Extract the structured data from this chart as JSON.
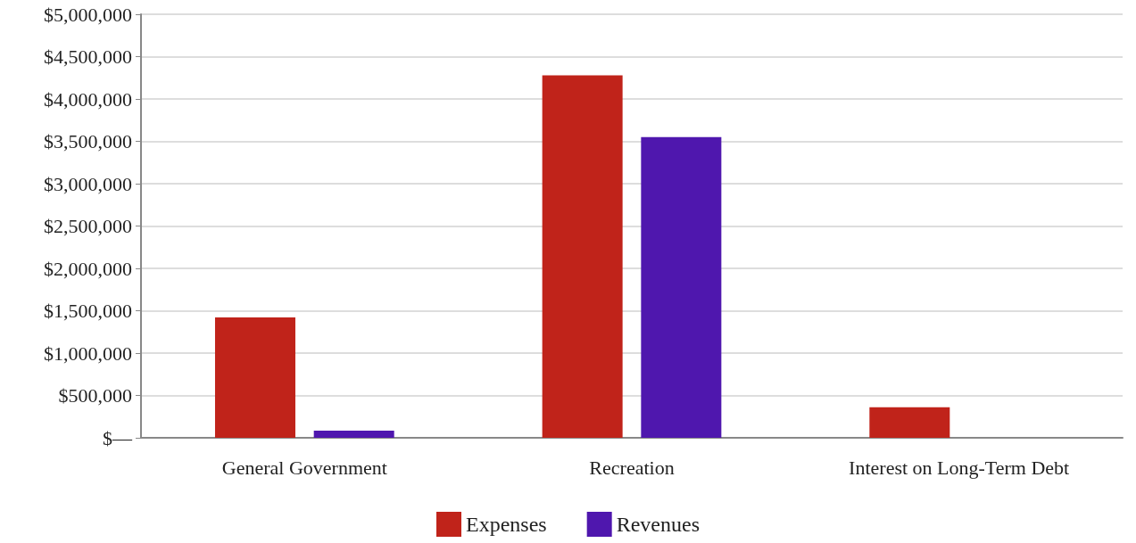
{
  "chart_data": {
    "type": "bar",
    "categories": [
      "General Government",
      "Recreation",
      "Interest on Long-Term Debt"
    ],
    "series": [
      {
        "name": "Expenses",
        "color": "#c0231a",
        "values": [
          1420000,
          4280000,
          360000
        ]
      },
      {
        "name": "Revenues",
        "color": "#4f17ae",
        "values": [
          85000,
          3550000,
          0
        ]
      }
    ],
    "ylim": [
      0,
      5000000
    ],
    "yticks": [
      {
        "value": 0,
        "label": "$—"
      },
      {
        "value": 500000,
        "label": "$500,000"
      },
      {
        "value": 1000000,
        "label": "$1,000,000"
      },
      {
        "value": 1500000,
        "label": "$1,500,000"
      },
      {
        "value": 2000000,
        "label": "$2,000,000"
      },
      {
        "value": 2500000,
        "label": "$2,500,000"
      },
      {
        "value": 3000000,
        "label": "$3,000,000"
      },
      {
        "value": 3500000,
        "label": "$3,500,000"
      },
      {
        "value": 4000000,
        "label": "$4,000,000"
      },
      {
        "value": 4500000,
        "label": "$4,500,000"
      },
      {
        "value": 5000000,
        "label": "$5,000,000"
      }
    ],
    "grid": "y",
    "legend": "bottom"
  }
}
